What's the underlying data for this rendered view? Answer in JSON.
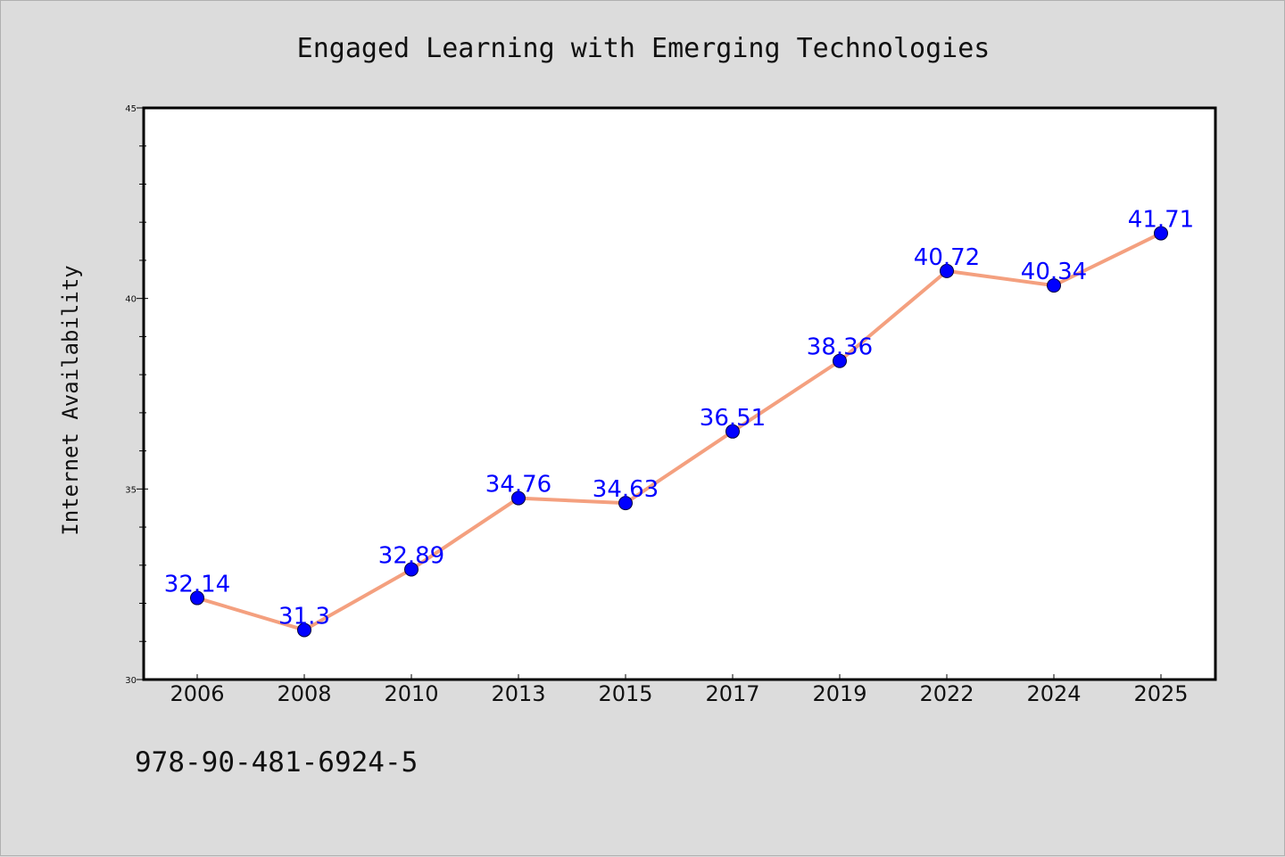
{
  "chart_data": {
    "type": "line",
    "title": "Engaged Learning with Emerging Technologies",
    "ylabel": "Internet Availability",
    "xlabel": "",
    "categories": [
      "2006",
      "2008",
      "2010",
      "2013",
      "2015",
      "2017",
      "2019",
      "2022",
      "2024",
      "2025"
    ],
    "series": [
      {
        "values": [
          32.14,
          31.3,
          32.89,
          34.76,
          34.63,
          36.51,
          38.36,
          40.72,
          40.34,
          41.71
        ]
      }
    ],
    "data_labels": [
      "32.14",
      "31.3",
      "32.89",
      "34.76",
      "34.63",
      "36.51",
      "38.36",
      "40.72",
      "40.34",
      "41.71"
    ],
    "ylim": [
      30,
      45
    ],
    "yticks": [
      30,
      35,
      40,
      45
    ],
    "grid": false,
    "line_color": "#f4a07f",
    "marker_color": "#0000ff",
    "label_color": "#0000ff"
  },
  "footnote": "978-90-481-6924-5"
}
